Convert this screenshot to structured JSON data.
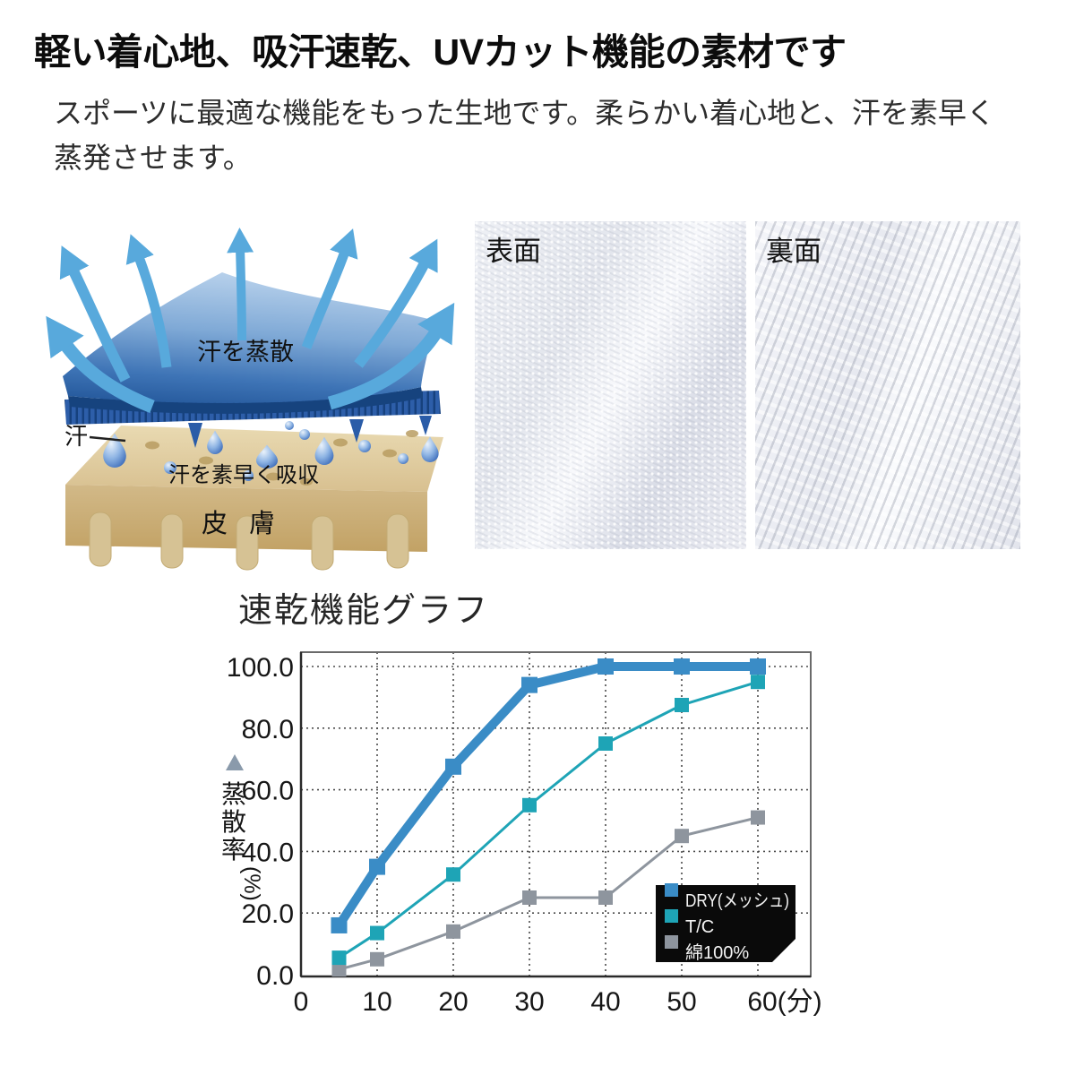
{
  "page": {
    "title": "軽い着心地、吸汗速乾、UVカット機能の素材です",
    "description": "スポーツに最適な機能をもった生地です。柔らかい着心地と、汗を素早く蒸発させます。",
    "background": "#ffffff"
  },
  "diagram": {
    "label_evaporate": "汗を蒸散",
    "label_sweat": "汗",
    "label_absorb": "汗を素早く吸収",
    "label_skin": "皮 膚",
    "colors": {
      "arrow": "#58a9dc",
      "fabric_light": "#cfe2f4",
      "fabric_dark": "#1d5094",
      "fringe": "#2d5ea9",
      "skin_top": "#e0cc9e",
      "skin_front": "#cdb37e",
      "droplet": "#3f6fbe"
    }
  },
  "photos": {
    "front_label": "表面",
    "back_label": "裏面"
  },
  "chart_data": {
    "type": "line",
    "title": "速乾機能グラフ",
    "ylabel": "蒸散率(%)",
    "x_unit": "分",
    "x": [
      5,
      10,
      20,
      30,
      40,
      50,
      60
    ],
    "x_ticks": [
      0,
      10,
      20,
      30,
      40,
      50,
      60
    ],
    "x_tick_labels": [
      "0",
      "10",
      "20",
      "30",
      "40",
      "50",
      "60(分)"
    ],
    "y_ticks": [
      0,
      20,
      40,
      60,
      80,
      100
    ],
    "y_tick_labels": [
      "0.0",
      "20.0",
      "40.0",
      "60.0",
      "80.0",
      "100.0"
    ],
    "xlim": [
      0,
      66
    ],
    "ylim": [
      0,
      106
    ],
    "grid": "dotted",
    "legend_position": "bottom-right",
    "legend_background": "#0a0a0a",
    "series": [
      {
        "name": "DRY(メッシュ)",
        "color": "#3a8cc6",
        "line_width": 10,
        "marker_size": 18,
        "values": [
          16,
          35,
          67.5,
          94,
          100,
          100,
          100
        ]
      },
      {
        "name": "T/C",
        "color": "#1ea4b6",
        "line_width": 3,
        "marker_size": 16,
        "values": [
          5.5,
          13.5,
          32.5,
          55,
          75,
          87.5,
          95
        ]
      },
      {
        "name": "綿100%",
        "color": "#8e959e",
        "line_width": 3,
        "marker_size": 16,
        "values": [
          1.7,
          5,
          14,
          25,
          25,
          45,
          51
        ]
      }
    ]
  }
}
